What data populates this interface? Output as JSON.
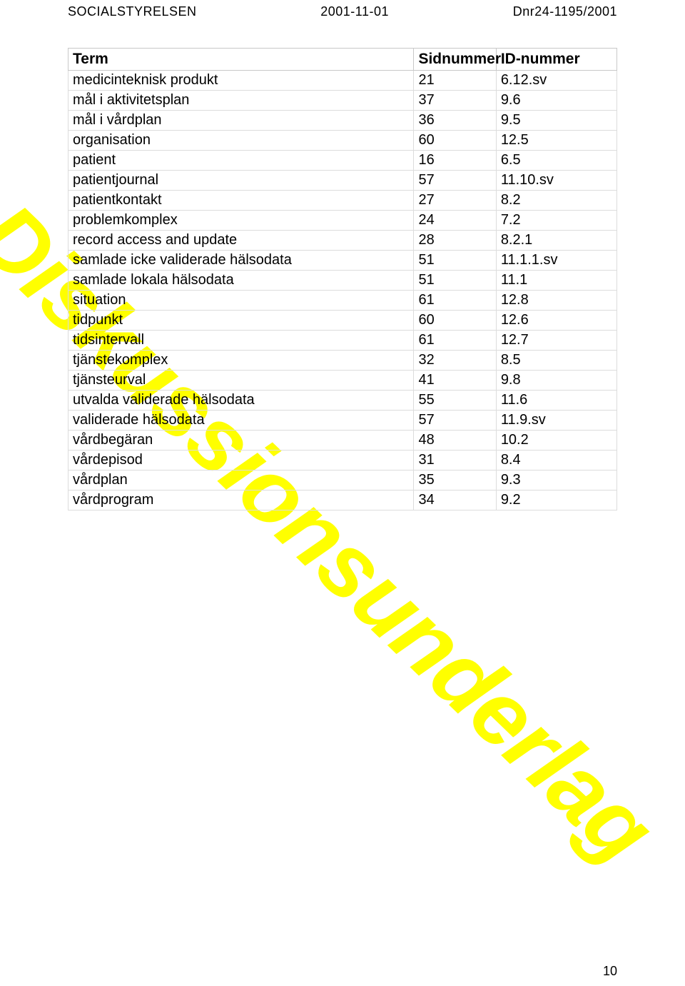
{
  "header": {
    "left": "SOCIALSTYRELSEN",
    "mid": "2001-11-01",
    "right": "Dnr24-1195/2001"
  },
  "watermark": "Diskussionsunderlag",
  "page_number": "10",
  "table": {
    "columns": [
      "Term",
      "Sidnummer",
      "ID-nummer"
    ],
    "rows": [
      [
        "medicinteknisk produkt",
        "21",
        "6.12.sv"
      ],
      [
        "mål i aktivitetsplan",
        "37",
        "9.6"
      ],
      [
        "mål i vårdplan",
        "36",
        "9.5"
      ],
      [
        "organisation",
        "60",
        "12.5"
      ],
      [
        "patient",
        "16",
        "6.5"
      ],
      [
        "patientjournal",
        "57",
        "11.10.sv"
      ],
      [
        "patientkontakt",
        "27",
        "8.2"
      ],
      [
        "problemkomplex",
        "24",
        "7.2"
      ],
      [
        "record access and update",
        "28",
        "8.2.1"
      ],
      [
        "samlade icke validerade hälsodata",
        "51",
        "11.1.1.sv"
      ],
      [
        "samlade lokala hälsodata",
        "51",
        "11.1"
      ],
      [
        "situation",
        "61",
        "12.8"
      ],
      [
        "tidpunkt",
        "60",
        "12.6"
      ],
      [
        "tidsintervall",
        "61",
        "12.7"
      ],
      [
        "tjänstekomplex",
        "32",
        "8.5"
      ],
      [
        "tjänsteurval",
        "41",
        "9.8"
      ],
      [
        "utvalda validerade hälsodata",
        "55",
        "11.6"
      ],
      [
        "validerade hälsodata",
        "57",
        "11.9.sv"
      ],
      [
        "vårdbegäran",
        "48",
        "10.2"
      ],
      [
        "vårdepisod",
        "31",
        "8.4"
      ],
      [
        "vårdplan",
        "35",
        "9.3"
      ],
      [
        "vårdprogram",
        "34",
        "9.2"
      ]
    ],
    "border_color": "#dcdcdc",
    "header_border_color": "#c8c8c8",
    "font_size_header": 21,
    "font_size_cell": 20
  },
  "colors": {
    "background": "#ffffff",
    "text": "#000000",
    "watermark": "#ffff00"
  }
}
